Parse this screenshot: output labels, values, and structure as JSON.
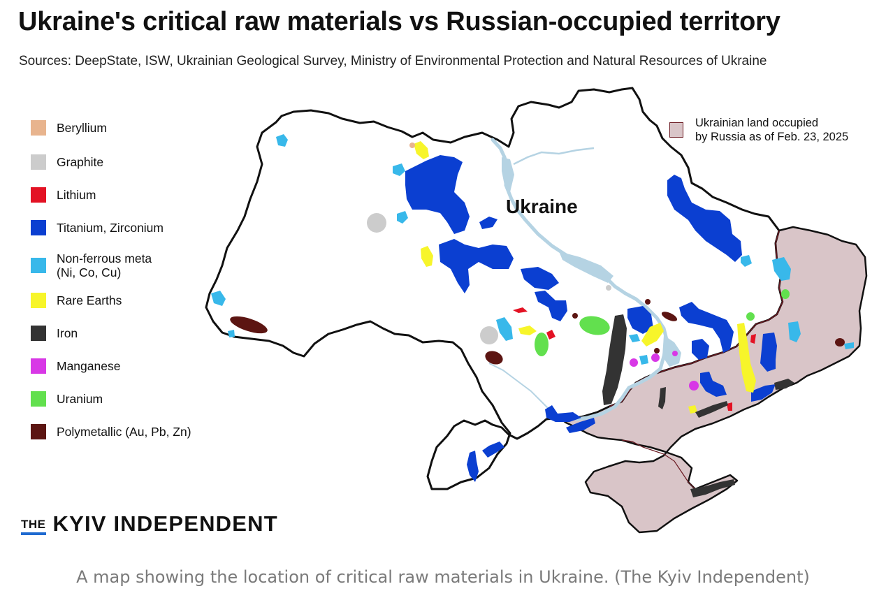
{
  "title": "Ukraine's critical raw materials vs Russian-occupied territory",
  "sources": "Sources: DeepState, ISW, Ukrainian Geological Survey, Ministry of Environmental Protection and Natural Resources of Ukraine",
  "legend": [
    {
      "label": "Beryllium",
      "sub": "",
      "color": "#e8b48e"
    },
    {
      "label": "Graphite",
      "sub": "",
      "color": "#cccccc"
    },
    {
      "label": "Lithium",
      "sub": "",
      "color": "#e31224"
    },
    {
      "label": "Titanium, Zirconium",
      "sub": "",
      "color": "#0b3fd1"
    },
    {
      "label": "Non-ferrous meta",
      "sub": "(Ni, Co, Cu)",
      "color": "#38b8ea"
    },
    {
      "label": "Rare Earths",
      "sub": "",
      "color": "#f7f52a"
    },
    {
      "label": "Iron",
      "sub": "",
      "color": "#333333"
    },
    {
      "label": "Manganese",
      "sub": "",
      "color": "#d838e6"
    },
    {
      "label": "Uranium",
      "sub": "",
      "color": "#62e04e"
    },
    {
      "label": "Polymetallic (Au, Pb, Zn)",
      "sub": "",
      "color": "#5c1512"
    }
  ],
  "occupied_legend": {
    "line1": "Ukrainian land occupied",
    "line2": "by Russia as of Feb. 23, 2025",
    "color": "#d9c5c8",
    "border_color": "#6b1a22"
  },
  "map_label": "Ukraine",
  "logo": {
    "the": "THE",
    "name": "KYIV INDEPENDENT",
    "accent": "#1e6ad0"
  },
  "caption": "A map showing the location of critical raw materials in Ukraine. (The Kyiv Independent)",
  "colors": {
    "river": "#b5d3e3",
    "border": "#111111",
    "occupied": "#d9c5c8",
    "occupied_line": "#6b1a22"
  }
}
